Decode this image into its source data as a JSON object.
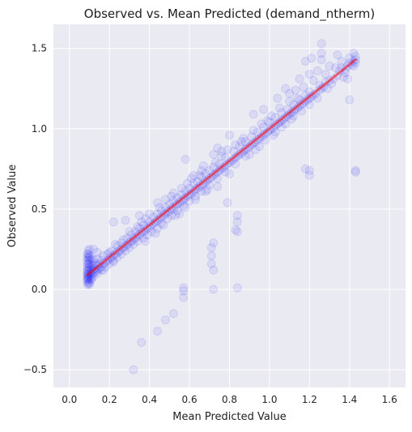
{
  "chart_data": {
    "type": "scatter",
    "title": "Observed vs. Mean Predicted (demand_ntherm)",
    "xlabel": "Mean Predicted Value",
    "ylabel": "Observed Value",
    "xlim": [
      -0.08,
      1.68
    ],
    "ylim": [
      -0.61,
      1.65
    ],
    "xticks": [
      0.0,
      0.2,
      0.4,
      0.6,
      0.8,
      1.0,
      1.2,
      1.4,
      1.6
    ],
    "xtick_labels": [
      "0.0",
      "0.2",
      "0.4",
      "0.6",
      "0.8",
      "1.0",
      "1.2",
      "1.4",
      "1.6"
    ],
    "yticks": [
      -0.5,
      0.0,
      0.5,
      1.0,
      1.5
    ],
    "ytick_labels": [
      "−0.5",
      "0.0",
      "0.5",
      "1.0",
      "1.5"
    ],
    "grid": true,
    "background_color": "#eaeaf2",
    "grid_color": "#ffffff",
    "point_color": "#0000ff",
    "point_opacity": 0.07,
    "reference_line": {
      "x": [
        0.09,
        1.43
      ],
      "y": [
        0.09,
        1.43
      ],
      "color": "#ff0000",
      "opacity": 0.55
    },
    "points": [
      [
        0.09,
        0.05
      ],
      [
        0.09,
        0.06
      ],
      [
        0.09,
        0.07
      ],
      [
        0.09,
        0.08
      ],
      [
        0.09,
        0.09
      ],
      [
        0.09,
        0.1
      ],
      [
        0.09,
        0.11
      ],
      [
        0.09,
        0.12
      ],
      [
        0.095,
        0.07
      ],
      [
        0.095,
        0.09
      ],
      [
        0.095,
        0.13
      ],
      [
        0.095,
        0.16
      ],
      [
        0.095,
        0.19
      ],
      [
        0.095,
        0.22
      ],
      [
        0.095,
        0.24
      ],
      [
        0.095,
        0.04
      ],
      [
        0.1,
        0.06
      ],
      [
        0.1,
        0.08
      ],
      [
        0.1,
        0.1
      ],
      [
        0.1,
        0.14
      ],
      [
        0.1,
        0.18
      ],
      [
        0.1,
        0.21
      ],
      [
        0.1,
        0.25
      ],
      [
        0.1,
        0.03
      ],
      [
        0.11,
        0.09
      ],
      [
        0.11,
        0.11
      ],
      [
        0.11,
        0.13
      ],
      [
        0.11,
        0.07
      ],
      [
        0.12,
        0.1
      ],
      [
        0.12,
        0.12
      ],
      [
        0.12,
        0.15
      ],
      [
        0.12,
        0.18
      ],
      [
        0.13,
        0.11
      ],
      [
        0.13,
        0.13
      ],
      [
        0.13,
        0.16
      ],
      [
        0.14,
        0.12
      ],
      [
        0.14,
        0.15
      ],
      [
        0.14,
        0.19
      ],
      [
        0.15,
        0.13
      ],
      [
        0.15,
        0.16
      ],
      [
        0.16,
        0.14
      ],
      [
        0.16,
        0.18
      ],
      [
        0.17,
        0.16
      ],
      [
        0.17,
        0.12
      ],
      [
        0.18,
        0.17
      ],
      [
        0.19,
        0.18
      ],
      [
        0.19,
        0.22
      ],
      [
        0.2,
        0.19
      ],
      [
        0.21,
        0.2
      ],
      [
        0.21,
        0.24
      ],
      [
        0.22,
        0.21
      ],
      [
        0.22,
        0.17
      ],
      [
        0.22,
        0.42
      ],
      [
        0.23,
        0.22
      ],
      [
        0.24,
        0.23
      ],
      [
        0.24,
        0.27
      ],
      [
        0.25,
        0.24
      ],
      [
        0.26,
        0.25
      ],
      [
        0.26,
        0.29
      ],
      [
        0.27,
        0.26
      ],
      [
        0.28,
        0.27
      ],
      [
        0.28,
        0.43
      ],
      [
        0.29,
        0.28
      ],
      [
        0.29,
        0.32
      ],
      [
        0.3,
        0.29
      ],
      [
        0.31,
        0.3
      ],
      [
        0.31,
        0.34
      ],
      [
        0.32,
        0.31
      ],
      [
        0.33,
        0.32
      ],
      [
        0.33,
        0.36
      ],
      [
        0.34,
        0.33
      ],
      [
        0.35,
        0.34
      ],
      [
        0.35,
        0.38
      ],
      [
        0.35,
        0.46
      ],
      [
        0.36,
        0.35
      ],
      [
        0.37,
        0.36
      ],
      [
        0.37,
        0.4
      ],
      [
        0.38,
        0.37
      ],
      [
        0.38,
        0.44
      ],
      [
        0.39,
        0.38
      ],
      [
        0.4,
        0.39
      ],
      [
        0.4,
        0.42
      ],
      [
        0.41,
        0.4
      ],
      [
        0.42,
        0.41
      ],
      [
        0.42,
        0.45
      ],
      [
        0.43,
        0.42
      ],
      [
        0.44,
        0.43
      ],
      [
        0.44,
        0.47
      ],
      [
        0.44,
        0.54
      ],
      [
        0.45,
        0.44
      ],
      [
        0.46,
        0.45
      ],
      [
        0.46,
        0.49
      ],
      [
        0.47,
        0.46
      ],
      [
        0.48,
        0.47
      ],
      [
        0.48,
        0.51
      ],
      [
        0.49,
        0.48
      ],
      [
        0.5,
        0.49
      ],
      [
        0.5,
        0.53
      ],
      [
        0.51,
        0.5
      ],
      [
        0.52,
        0.51
      ],
      [
        0.52,
        0.55
      ],
      [
        0.52,
        0.6
      ],
      [
        0.53,
        0.52
      ],
      [
        0.54,
        0.53
      ],
      [
        0.54,
        0.57
      ],
      [
        0.55,
        0.54
      ],
      [
        0.56,
        0.55
      ],
      [
        0.56,
        0.59
      ],
      [
        0.57,
        0.56
      ],
      [
        0.58,
        0.57
      ],
      [
        0.58,
        0.61
      ],
      [
        0.58,
        0.81
      ],
      [
        0.59,
        0.58
      ],
      [
        0.6,
        0.59
      ],
      [
        0.6,
        0.63
      ],
      [
        0.61,
        0.6
      ],
      [
        0.62,
        0.61
      ],
      [
        0.62,
        0.66
      ],
      [
        0.63,
        0.62
      ],
      [
        0.64,
        0.63
      ],
      [
        0.64,
        0.67
      ],
      [
        0.65,
        0.64
      ],
      [
        0.66,
        0.65
      ],
      [
        0.66,
        0.7
      ],
      [
        0.67,
        0.66
      ],
      [
        0.68,
        0.67
      ],
      [
        0.68,
        0.72
      ],
      [
        0.69,
        0.68
      ],
      [
        0.7,
        0.69
      ],
      [
        0.7,
        0.74
      ],
      [
        0.71,
        0.7
      ],
      [
        0.72,
        0.71
      ],
      [
        0.72,
        0.76
      ],
      [
        0.72,
        0.84
      ],
      [
        0.73,
        0.72
      ],
      [
        0.74,
        0.73
      ],
      [
        0.75,
        0.74
      ],
      [
        0.75,
        0.78
      ],
      [
        0.76,
        0.75
      ],
      [
        0.77,
        0.76
      ],
      [
        0.78,
        0.77
      ],
      [
        0.78,
        0.82
      ],
      [
        0.79,
        0.78
      ],
      [
        0.8,
        0.79
      ],
      [
        0.81,
        0.8
      ],
      [
        0.82,
        0.81
      ],
      [
        0.82,
        0.86
      ],
      [
        0.83,
        0.82
      ],
      [
        0.84,
        0.83
      ],
      [
        0.85,
        0.84
      ],
      [
        0.85,
        0.89
      ],
      [
        0.86,
        0.85
      ],
      [
        0.87,
        0.86
      ],
      [
        0.88,
        0.87
      ],
      [
        0.88,
        0.92
      ],
      [
        0.89,
        0.88
      ],
      [
        0.9,
        0.89
      ],
      [
        0.91,
        0.9
      ],
      [
        0.91,
        0.95
      ],
      [
        0.92,
        0.91
      ],
      [
        0.93,
        0.92
      ],
      [
        0.94,
        0.93
      ],
      [
        0.94,
        0.98
      ],
      [
        0.95,
        0.94
      ],
      [
        0.96,
        0.95
      ],
      [
        0.97,
        0.96
      ],
      [
        0.97,
        1.01
      ],
      [
        0.98,
        0.97
      ],
      [
        0.99,
        0.98
      ],
      [
        1.0,
        0.99
      ],
      [
        1.0,
        1.04
      ],
      [
        1.01,
        1.0
      ],
      [
        1.02,
        1.01
      ],
      [
        1.03,
        1.02
      ],
      [
        1.03,
        1.07
      ],
      [
        1.04,
        1.03
      ],
      [
        1.05,
        1.04
      ],
      [
        1.06,
        1.05
      ],
      [
        1.06,
        1.1
      ],
      [
        1.07,
        1.06
      ],
      [
        1.08,
        1.07
      ],
      [
        1.09,
        1.08
      ],
      [
        1.09,
        1.12
      ],
      [
        1.1,
        1.09
      ],
      [
        1.11,
        1.1
      ],
      [
        1.12,
        1.11
      ],
      [
        1.12,
        1.15
      ],
      [
        1.13,
        1.12
      ],
      [
        1.14,
        1.13
      ],
      [
        1.15,
        1.14
      ],
      [
        1.15,
        1.18
      ],
      [
        1.16,
        1.15
      ],
      [
        1.17,
        1.16
      ],
      [
        1.18,
        1.17
      ],
      [
        1.18,
        1.21
      ],
      [
        1.19,
        1.18
      ],
      [
        1.2,
        1.19
      ],
      [
        1.2,
        1.23
      ],
      [
        1.21,
        1.2
      ],
      [
        1.22,
        1.21
      ],
      [
        1.23,
        1.22
      ],
      [
        1.25,
        1.24
      ],
      [
        1.25,
        1.27
      ],
      [
        1.26,
        1.25
      ],
      [
        1.26,
        1.47
      ],
      [
        1.26,
        1.53
      ],
      [
        1.26,
        1.43
      ],
      [
        1.27,
        1.26
      ],
      [
        1.28,
        1.29
      ],
      [
        1.3,
        1.3
      ],
      [
        1.32,
        1.31
      ],
      [
        1.34,
        1.33
      ],
      [
        1.35,
        1.36
      ],
      [
        1.36,
        1.38
      ],
      [
        1.38,
        1.37
      ],
      [
        1.39,
        1.39
      ],
      [
        1.4,
        1.41
      ],
      [
        1.41,
        1.4
      ],
      [
        1.42,
        1.42
      ],
      [
        1.43,
        1.43
      ],
      [
        1.43,
        1.45
      ],
      [
        1.42,
        1.39
      ],
      [
        1.43,
        0.73
      ],
      [
        1.43,
        0.74
      ],
      [
        1.2,
        0.74
      ],
      [
        1.2,
        0.71
      ],
      [
        1.18,
        0.75
      ],
      [
        1.14,
        1.19
      ],
      [
        1.18,
        1.42
      ],
      [
        1.21,
        1.44
      ],
      [
        1.2,
        1.34
      ],
      [
        1.4,
        1.18
      ],
      [
        1.39,
        1.31
      ],
      [
        1.3,
        1.39
      ],
      [
        1.34,
        1.46
      ],
      [
        1.37,
        1.32
      ],
      [
        1.15,
        1.31
      ],
      [
        1.08,
        1.25
      ],
      [
        1.1,
        1.22
      ],
      [
        1.04,
        1.19
      ],
      [
        0.97,
        1.12
      ],
      [
        0.92,
        1.09
      ],
      [
        0.99,
        1.05
      ],
      [
        0.86,
        0.92
      ],
      [
        0.8,
        0.96
      ],
      [
        0.76,
        0.86
      ],
      [
        0.74,
        0.88
      ],
      [
        0.66,
        0.74
      ],
      [
        0.84,
        0.46
      ],
      [
        0.84,
        0.42
      ],
      [
        0.83,
        0.37
      ],
      [
        0.84,
        0.36
      ],
      [
        0.79,
        0.54
      ],
      [
        0.72,
        0.29
      ],
      [
        0.71,
        0.21
      ],
      [
        0.71,
        0.26
      ],
      [
        0.71,
        0.16
      ],
      [
        0.72,
        0.0
      ],
      [
        0.84,
        0.01
      ],
      [
        0.72,
        0.12
      ],
      [
        0.57,
        0.01
      ],
      [
        0.57,
        -0.01
      ],
      [
        0.57,
        -0.05
      ],
      [
        0.52,
        -0.15
      ],
      [
        0.48,
        -0.19
      ],
      [
        0.44,
        -0.26
      ],
      [
        0.36,
        -0.33
      ],
      [
        0.32,
        -0.5
      ],
      [
        0.55,
        0.47
      ],
      [
        0.62,
        0.71
      ],
      [
        0.68,
        0.61
      ],
      [
        0.74,
        0.64
      ],
      [
        0.8,
        0.72
      ],
      [
        0.9,
        0.84
      ],
      [
        0.95,
        0.89
      ],
      [
        1.02,
        0.96
      ],
      [
        1.06,
        1.01
      ],
      [
        1.11,
        1.06
      ],
      [
        0.38,
        0.3
      ],
      [
        0.43,
        0.35
      ],
      [
        0.47,
        0.4
      ],
      [
        0.53,
        0.46
      ],
      [
        0.58,
        0.51
      ],
      [
        0.63,
        0.56
      ],
      [
        0.69,
        0.62
      ],
      [
        0.12,
        0.25
      ],
      [
        0.14,
        0.23
      ],
      [
        0.17,
        0.21
      ],
      [
        0.2,
        0.23
      ],
      [
        0.23,
        0.28
      ],
      [
        0.27,
        0.31
      ],
      [
        0.3,
        0.36
      ],
      [
        0.34,
        0.39
      ],
      [
        0.36,
        0.42
      ],
      [
        0.4,
        0.47
      ],
      [
        0.45,
        0.51
      ],
      [
        0.48,
        0.56
      ],
      [
        0.51,
        0.58
      ],
      [
        0.56,
        0.63
      ],
      [
        0.59,
        0.66
      ],
      [
        0.61,
        0.69
      ],
      [
        0.65,
        0.71
      ],
      [
        0.67,
        0.77
      ],
      [
        0.73,
        0.79
      ],
      [
        0.76,
        0.83
      ],
      [
        0.79,
        0.87
      ],
      [
        0.83,
        0.9
      ],
      [
        0.87,
        0.94
      ],
      [
        0.92,
        0.99
      ],
      [
        0.96,
        1.03
      ],
      [
        1.01,
        1.08
      ],
      [
        1.05,
        1.13
      ],
      [
        1.1,
        1.17
      ],
      [
        1.13,
        1.24
      ],
      [
        1.17,
        1.26
      ],
      [
        1.22,
        1.3
      ],
      [
        1.24,
        1.36
      ],
      [
        1.28,
        1.34
      ],
      [
        1.33,
        1.38
      ],
      [
        1.36,
        1.42
      ],
      [
        1.42,
        1.47
      ],
      [
        1.43,
        1.41
      ],
      [
        1.4,
        1.44
      ],
      [
        1.38,
        1.35
      ],
      [
        1.31,
        1.28
      ],
      [
        1.29,
        1.25
      ],
      [
        1.24,
        1.19
      ],
      [
        1.2,
        1.15
      ],
      [
        1.16,
        1.11
      ],
      [
        1.12,
        1.08
      ],
      [
        1.08,
        1.03
      ],
      [
        1.03,
        0.98
      ],
      [
        0.98,
        0.93
      ],
      [
        0.93,
        0.87
      ],
      [
        0.88,
        0.83
      ],
      [
        0.83,
        0.78
      ],
      [
        0.78,
        0.73
      ],
      [
        0.74,
        0.69
      ],
      [
        0.7,
        0.65
      ],
      [
        0.66,
        0.61
      ],
      [
        0.63,
        0.58
      ],
      [
        0.6,
        0.55
      ],
      [
        0.57,
        0.52
      ],
      [
        0.54,
        0.49
      ],
      [
        0.51,
        0.46
      ],
      [
        0.49,
        0.44
      ],
      [
        0.46,
        0.41
      ],
      [
        0.44,
        0.38
      ],
      [
        0.41,
        0.36
      ],
      [
        0.39,
        0.34
      ],
      [
        0.37,
        0.32
      ],
      [
        0.34,
        0.3
      ],
      [
        0.32,
        0.28
      ],
      [
        0.3,
        0.26
      ],
      [
        0.28,
        0.24
      ],
      [
        0.26,
        0.22
      ],
      [
        0.24,
        0.2
      ],
      [
        0.22,
        0.18
      ],
      [
        0.2,
        0.16
      ],
      [
        0.18,
        0.14
      ],
      [
        0.16,
        0.12
      ],
      [
        0.14,
        0.1
      ],
      [
        0.12,
        0.08
      ],
      [
        0.11,
        0.06
      ],
      [
        0.1,
        0.04
      ],
      [
        0.09,
        0.03
      ],
      [
        0.09,
        0.14
      ],
      [
        0.09,
        0.16
      ],
      [
        0.09,
        0.18
      ],
      [
        0.09,
        0.2
      ],
      [
        0.09,
        0.22
      ],
      [
        0.1,
        0.12
      ],
      [
        0.1,
        0.16
      ],
      [
        0.1,
        0.2
      ],
      [
        0.11,
        0.15
      ],
      [
        0.11,
        0.19
      ]
    ]
  }
}
